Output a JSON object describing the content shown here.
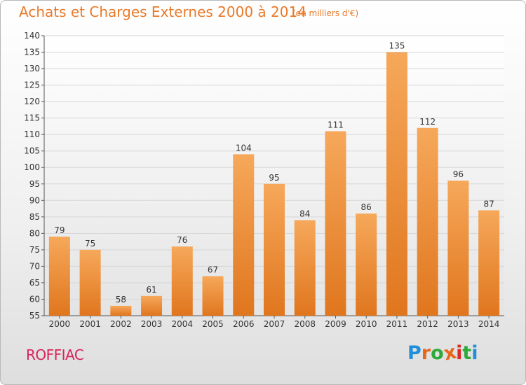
{
  "header": {
    "title": "Achats et Charges Externes 2000 à 2014",
    "subtitle": "(en milliers d'€)"
  },
  "footer": {
    "town": "ROFFIAC",
    "logo_text": "Proxiti"
  },
  "colors": {
    "title": "#e87a2a",
    "bar_light": "#f6a85a",
    "bar_dark": "#e0761e",
    "town": "#d9245c",
    "logo_letters": [
      "#1f8fd9",
      "#e8671a",
      "#2eaa3a",
      "#e8671a",
      "#d82a2a",
      "#2eaa3a",
      "#1f8fd9"
    ]
  },
  "chart_data": {
    "type": "bar",
    "title": "Achats et Charges Externes 2000 à 2014",
    "subtitle": "(en milliers d'€)",
    "categories": [
      "2000",
      "2001",
      "2002",
      "2003",
      "2004",
      "2005",
      "2006",
      "2007",
      "2008",
      "2009",
      "2010",
      "2011",
      "2012",
      "2013",
      "2014"
    ],
    "values": [
      79,
      75,
      58,
      61,
      76,
      67,
      104,
      95,
      84,
      111,
      86,
      135,
      112,
      96,
      87
    ],
    "ylim": [
      55,
      140
    ],
    "yticks": [
      55,
      60,
      65,
      70,
      75,
      80,
      85,
      90,
      95,
      100,
      105,
      110,
      115,
      120,
      125,
      130,
      135,
      140
    ],
    "grid": true,
    "xlabel": "",
    "ylabel": ""
  }
}
